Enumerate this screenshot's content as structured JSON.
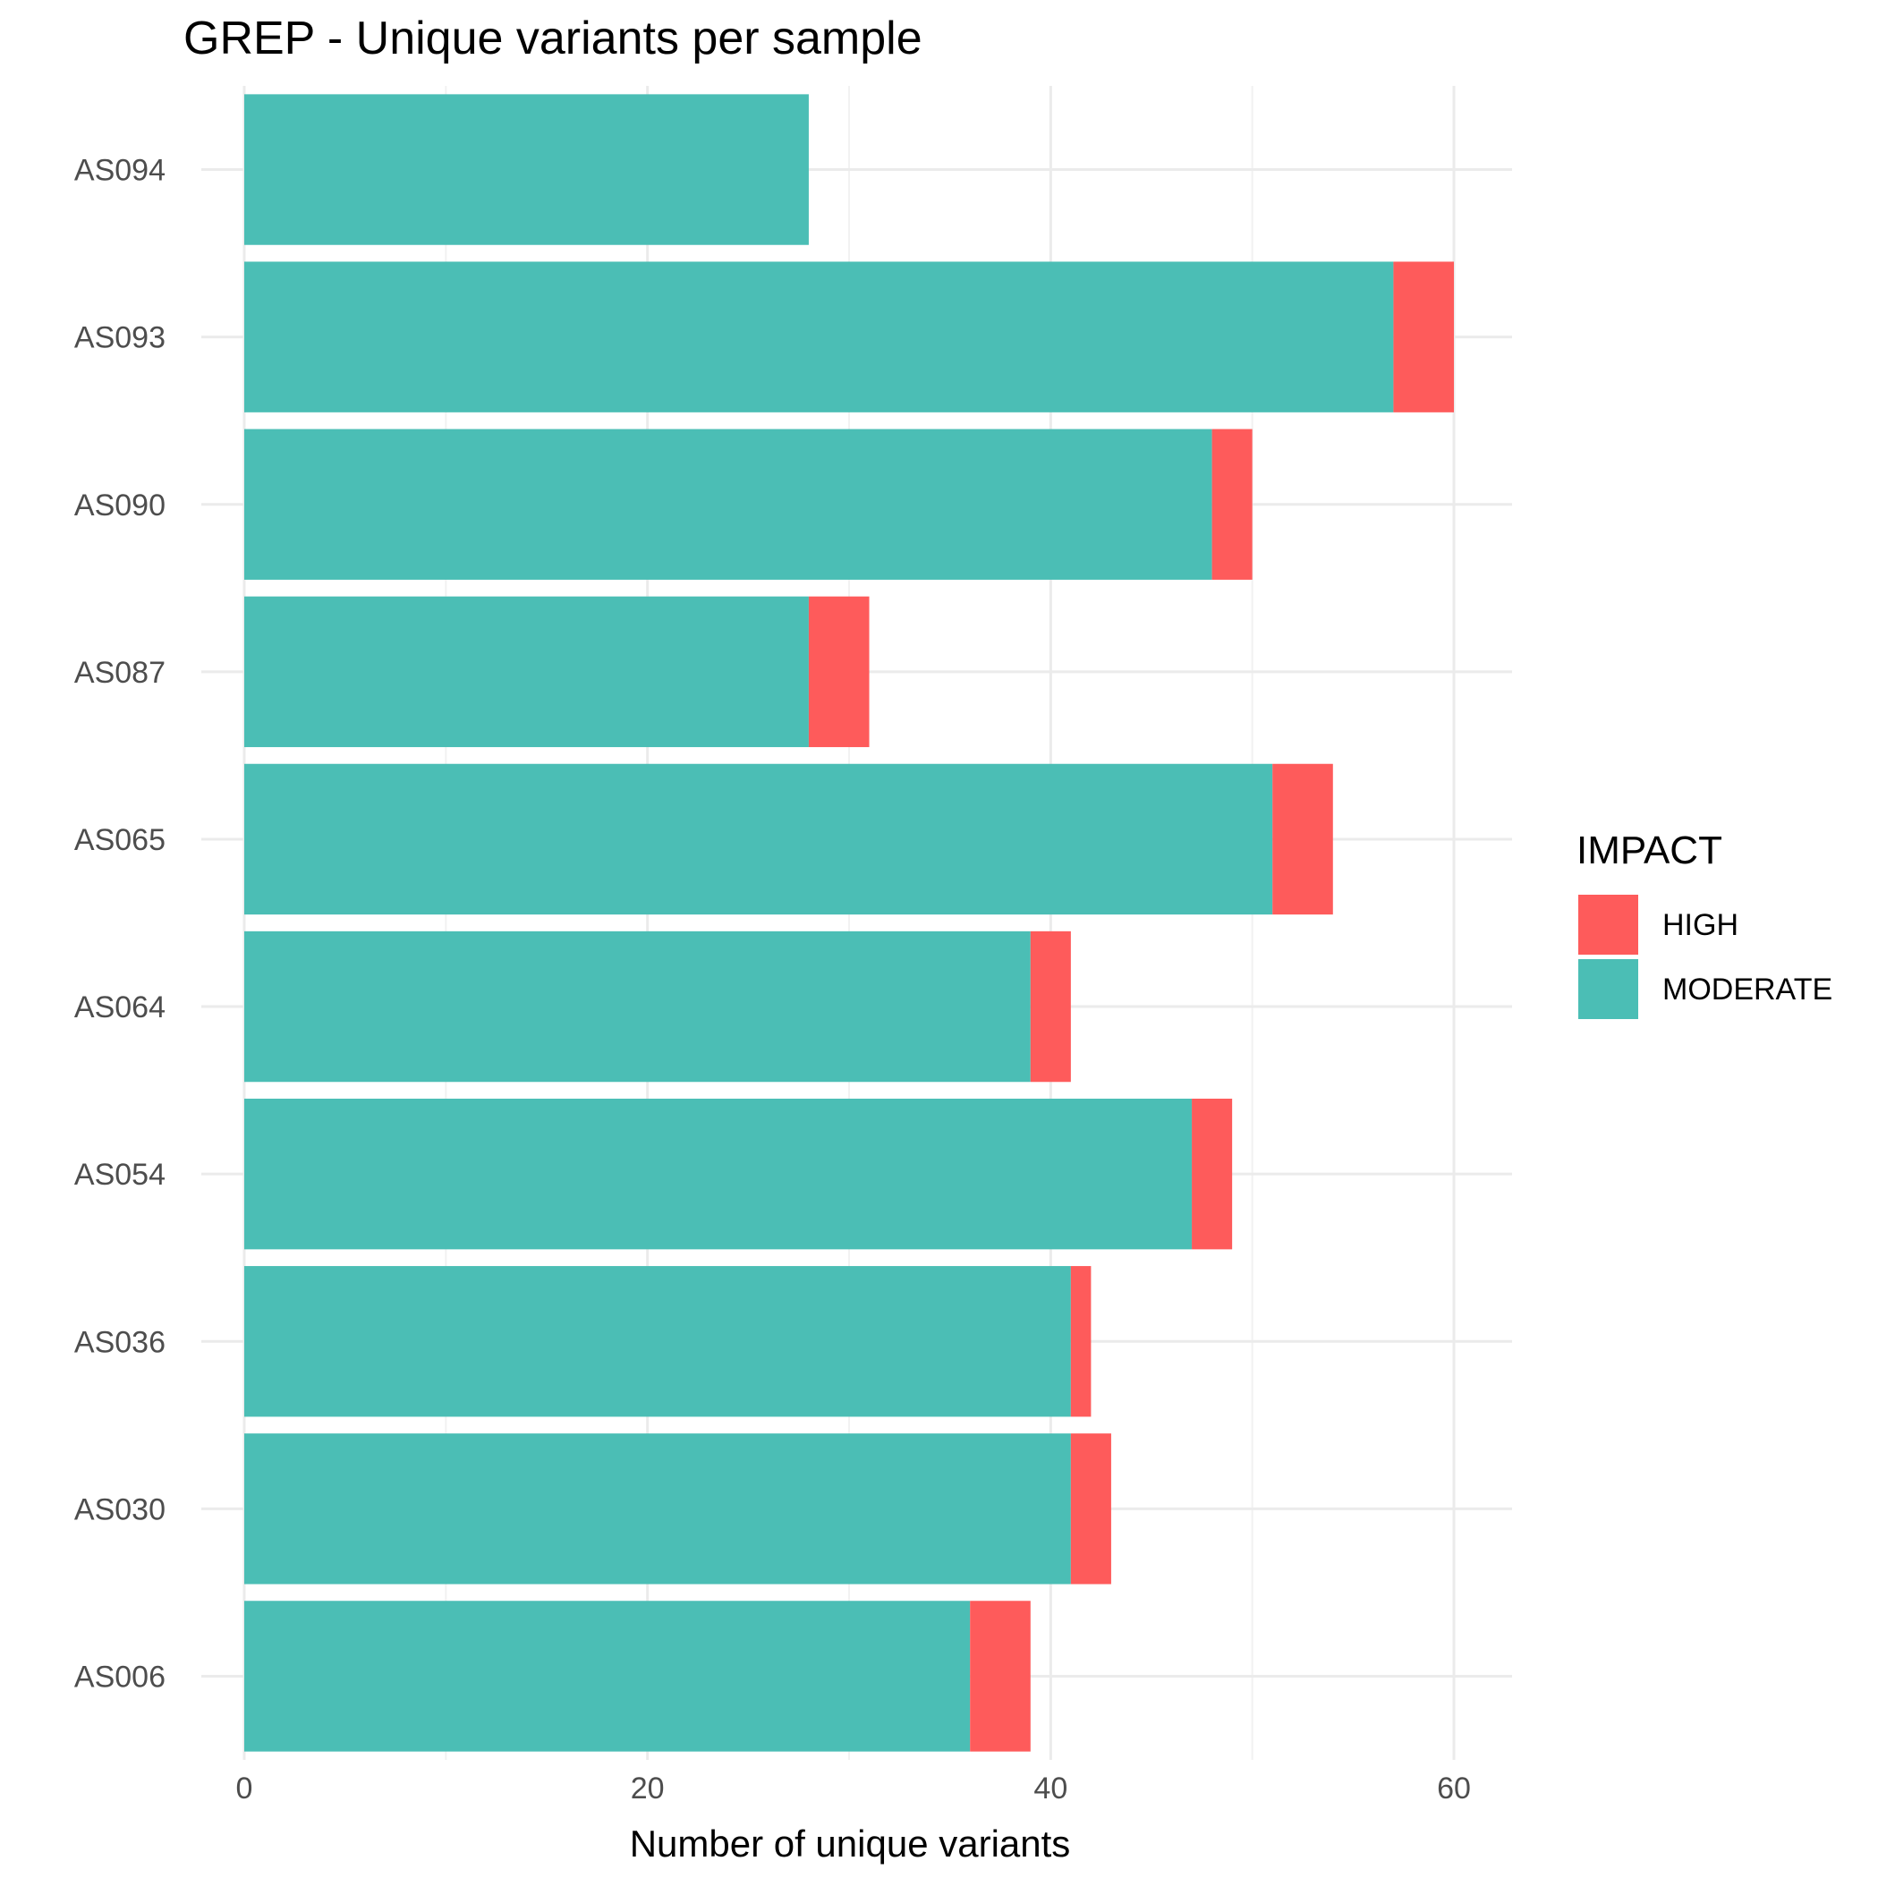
{
  "chart_data": {
    "type": "bar",
    "orientation": "horizontal",
    "stacked": true,
    "title": "GREP - Unique variants per sample",
    "xlabel": "Number of unique variants",
    "ylabel": "",
    "categories": [
      "AS094",
      "AS093",
      "AS090",
      "AS087",
      "AS065",
      "AS064",
      "AS054",
      "AS036",
      "AS030",
      "AS006"
    ],
    "series": [
      {
        "name": "MODERATE",
        "color": "#4BBEB5",
        "values": [
          28,
          57,
          48,
          28,
          51,
          39,
          47,
          41,
          41,
          36
        ]
      },
      {
        "name": "HIGH",
        "color": "#FE5B5B",
        "values": [
          0,
          3,
          2,
          3,
          3,
          2,
          2,
          1,
          2,
          3
        ]
      }
    ],
    "xlim": [
      0,
      63
    ],
    "xticks": [
      "0",
      "20",
      "40",
      "60"
    ],
    "grid": true,
    "legend": {
      "title": "IMPACT",
      "placement": "right",
      "entries": [
        {
          "name": "HIGH",
          "color": "#FE5B5B"
        },
        {
          "name": "MODERATE",
          "color": "#4BBEB5"
        }
      ]
    }
  }
}
